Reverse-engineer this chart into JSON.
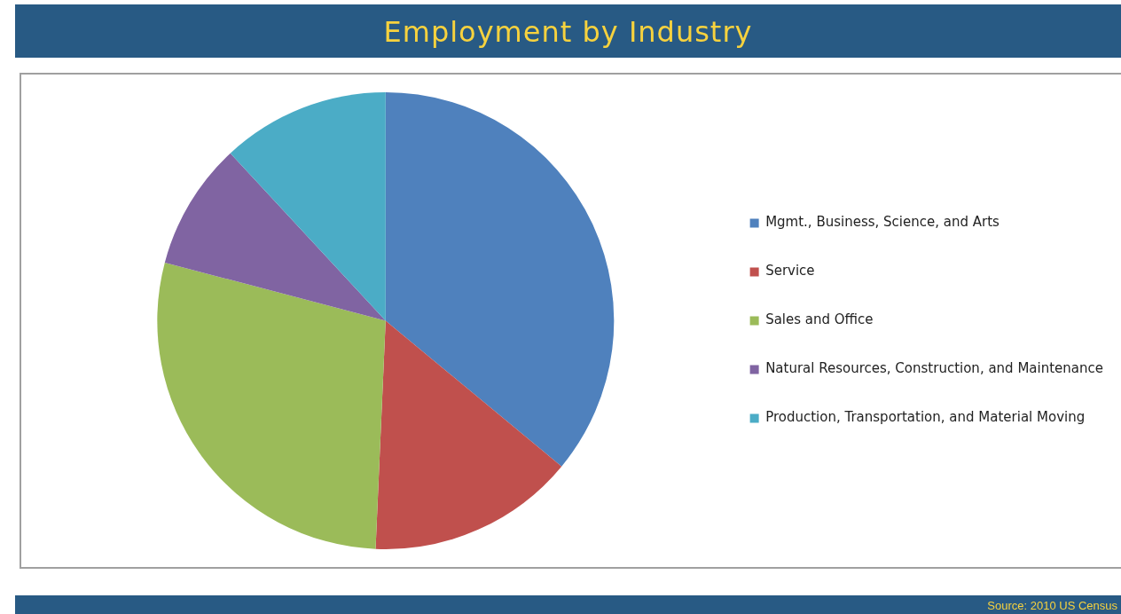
{
  "chart_data": {
    "type": "pie",
    "title": "Employment by Industry",
    "categories": [
      "Mgmt., Business, Science, and Arts",
      "Service",
      "Sales and Office",
      "Natural Resources, Construction, and Maintenance",
      "Production, Transportation, and Material Moving"
    ],
    "values": [
      36,
      14.7,
      28.4,
      9,
      11.9
    ],
    "colors": [
      "#4f81bd",
      "#c0504d",
      "#9bbb59",
      "#8064a2",
      "#4bacc6"
    ],
    "legend": "right",
    "annotations": [
      "Source:  2010 US Census"
    ]
  }
}
